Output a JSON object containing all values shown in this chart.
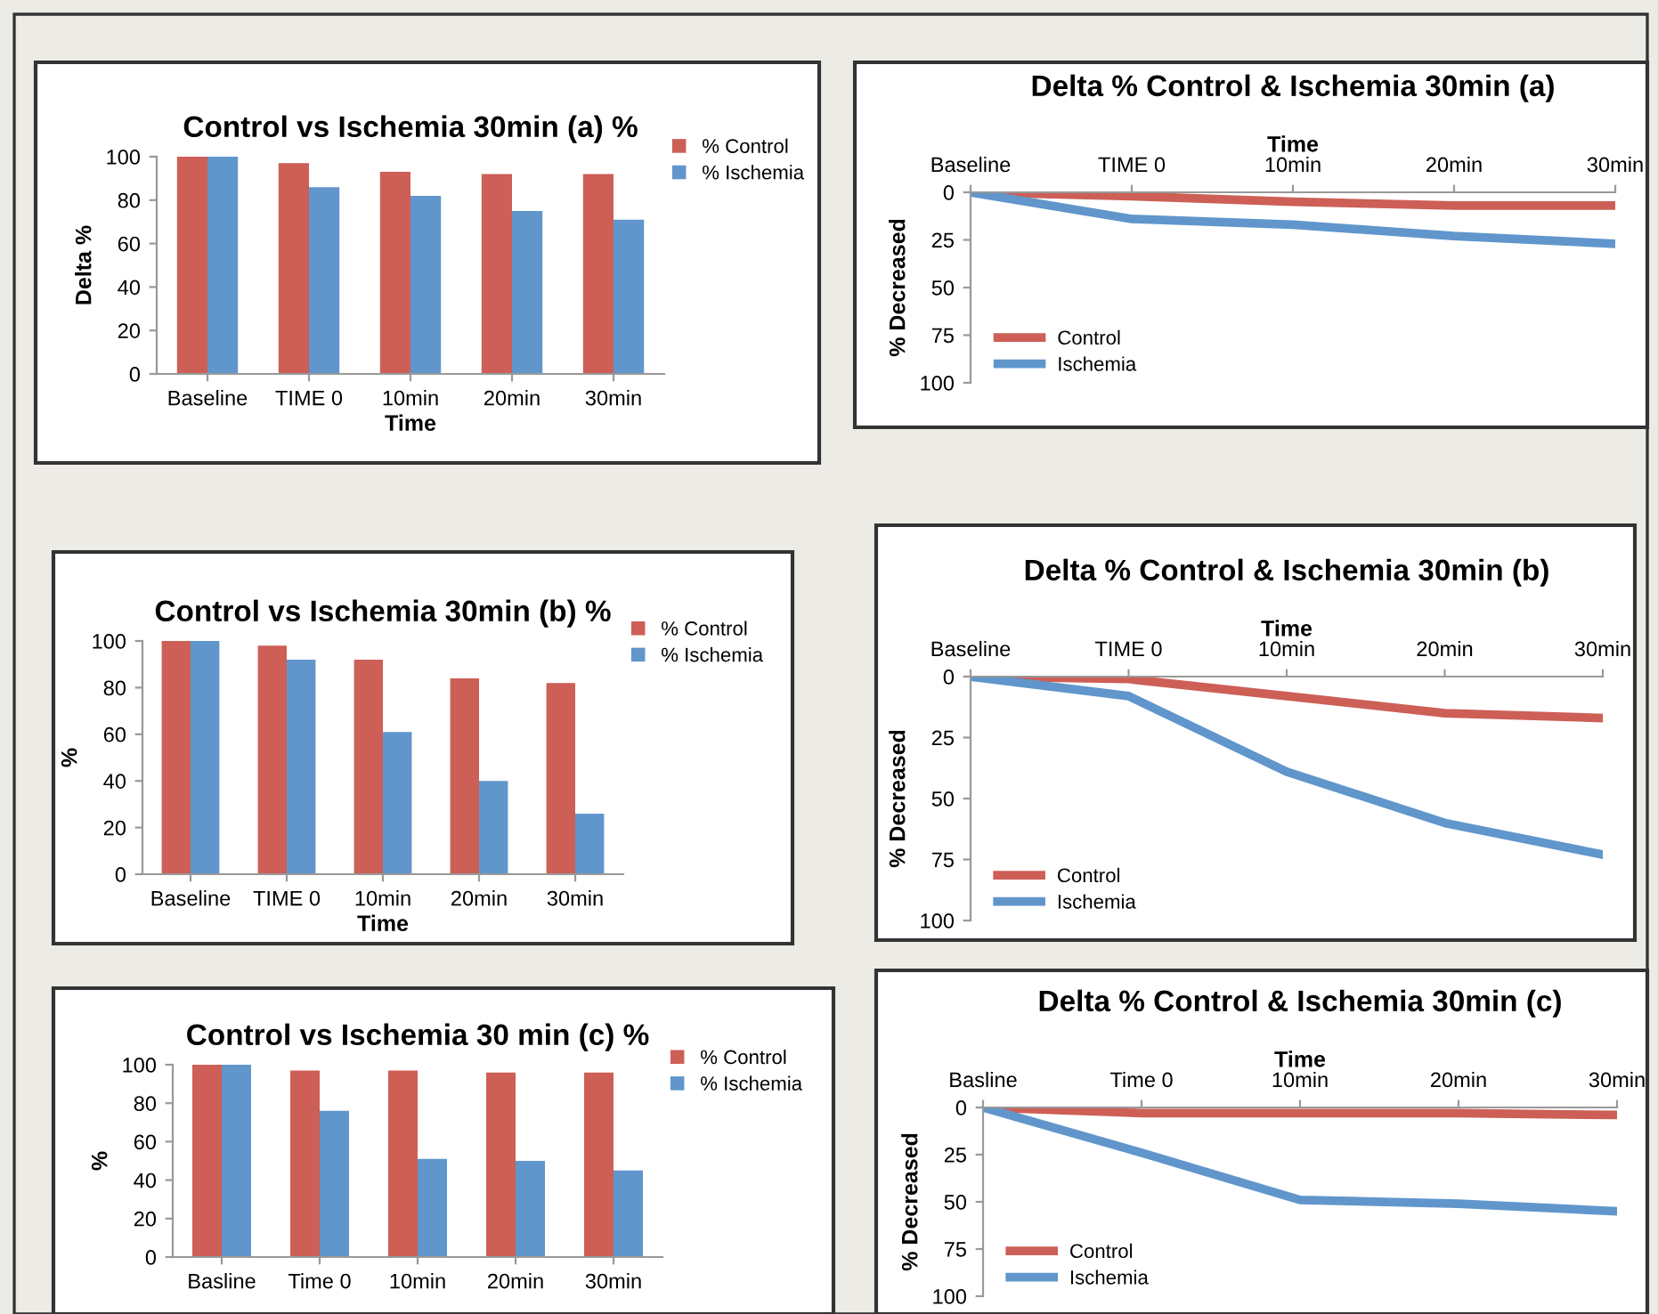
{
  "chart_data": [
    {
      "type": "bar",
      "title": "Control vs Ischemia 30min (a) %",
      "xlabel": "Time",
      "ylabel": "Delta %",
      "categories": [
        "Baseline",
        "TIME 0",
        "10min",
        "20min",
        "30min"
      ],
      "series": [
        {
          "name": "% Control",
          "color": "#cd5f57",
          "values": [
            100,
            97,
            93,
            92,
            92
          ]
        },
        {
          "name": "% Ischemia",
          "color": "#6096cb",
          "values": [
            100,
            86,
            82,
            75,
            71
          ]
        }
      ],
      "ylim": [
        0,
        100
      ],
      "yticks": [
        0,
        20,
        40,
        60,
        80,
        100
      ],
      "legend": "top right",
      "grid": false
    },
    {
      "type": "line",
      "title": "Delta % Control & Ischemia 30min (a)",
      "xlabel": "Time",
      "ylabel": "% Decreased",
      "categories": [
        "Baseline",
        "TIME 0",
        "10min",
        "20min",
        "30min"
      ],
      "series": [
        {
          "name": "Control",
          "color": "#cd5f57",
          "values": [
            0,
            2,
            5,
            7,
            7
          ]
        },
        {
          "name": "Ischemia",
          "color": "#6096cb",
          "values": [
            0,
            14,
            17,
            23,
            27
          ]
        }
      ],
      "ylim": [
        100,
        0
      ],
      "yticks": [
        0,
        25,
        50,
        75,
        100
      ],
      "legend": "bottom left",
      "grid": false,
      "marker": "none",
      "line_style": "solid"
    },
    {
      "type": "bar",
      "title": "Control vs Ischemia 30min (b) %",
      "xlabel": "Time",
      "ylabel": "%",
      "categories": [
        "Baseline",
        "TIME 0",
        "10min",
        "20min",
        "30min"
      ],
      "series": [
        {
          "name": "% Control",
          "color": "#cd5f57",
          "values": [
            100,
            98,
            92,
            84,
            82
          ]
        },
        {
          "name": "% Ischemia",
          "color": "#6096cb",
          "values": [
            100,
            92,
            61,
            40,
            26
          ]
        }
      ],
      "ylim": [
        0,
        100
      ],
      "yticks": [
        0,
        20,
        40,
        60,
        80,
        100
      ],
      "legend": "top right",
      "grid": false
    },
    {
      "type": "line",
      "title": "Delta % Control & Ischemia 30min (b)",
      "xlabel": "Time",
      "ylabel": "% Decreased",
      "categories": [
        "Baseline",
        "TIME 0",
        "10min",
        "20min",
        "30min"
      ],
      "series": [
        {
          "name": "Control",
          "color": "#cd5f57",
          "values": [
            0,
            1,
            8,
            15,
            17
          ]
        },
        {
          "name": "Ischemia",
          "color": "#6096cb",
          "values": [
            0,
            8,
            39,
            60,
            73
          ]
        }
      ],
      "ylim": [
        100,
        0
      ],
      "yticks": [
        0,
        25,
        50,
        75,
        100
      ],
      "legend": "bottom left",
      "grid": false,
      "marker": "none",
      "line_style": "solid"
    },
    {
      "type": "bar",
      "title": "Control vs Ischemia 30 min (c) %",
      "ylabel": "%",
      "categories": [
        "Basline",
        "Time 0",
        "10min",
        "20min",
        "30min"
      ],
      "series": [
        {
          "name": "% Control",
          "color": "#cd5f57",
          "values": [
            100,
            97,
            97,
            96,
            96
          ]
        },
        {
          "name": "% Ischemia",
          "color": "#6096cb",
          "values": [
            100,
            76,
            51,
            50,
            45
          ]
        }
      ],
      "ylim": [
        0,
        100
      ],
      "yticks": [
        0,
        20,
        40,
        60,
        80,
        100
      ],
      "legend": "top right",
      "grid": false
    },
    {
      "type": "line",
      "title": "Delta % Control & Ischemia 30min (c)",
      "xlabel": "Time",
      "ylabel": "% Decreased",
      "categories": [
        "Basline",
        "Time 0",
        "10min",
        "20min",
        "30min"
      ],
      "series": [
        {
          "name": "Control",
          "color": "#cd5f57",
          "values": [
            0,
            3,
            3,
            3,
            4
          ]
        },
        {
          "name": "Ischemia",
          "color": "#6096cb",
          "values": [
            0,
            24,
            49,
            51,
            55
          ]
        }
      ],
      "ylim": [
        100,
        0
      ],
      "yticks": [
        0,
        25,
        50,
        75,
        100
      ],
      "legend": "bottom left",
      "grid": false,
      "marker": "none",
      "line_style": "solid"
    }
  ]
}
